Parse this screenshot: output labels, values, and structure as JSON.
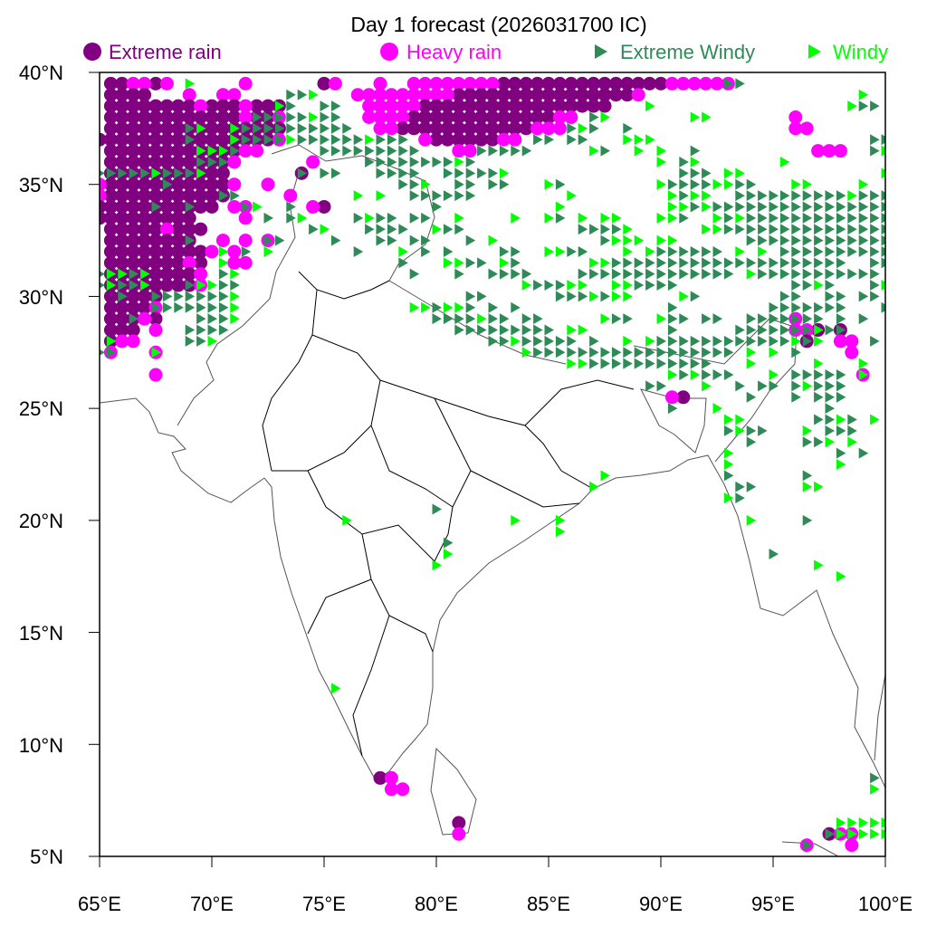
{
  "title": "Day 1 forecast (2026031700 IC)",
  "legend": [
    {
      "label": "Extreme rain",
      "symbol": "circle",
      "color": "#800080"
    },
    {
      "label": "Heavy rain",
      "symbol": "circle",
      "color": "#ff00ff"
    },
    {
      "label": "Extreme Windy",
      "symbol": "triangle",
      "color": "#2e8b57"
    },
    {
      "label": "Windy",
      "symbol": "triangle",
      "color": "#00ff00"
    }
  ],
  "axes": {
    "x_ticks": [
      "65°E",
      "70°E",
      "75°E",
      "80°E",
      "85°E",
      "90°E",
      "95°E",
      "100°E"
    ],
    "y_ticks": [
      "40°N",
      "35°N",
      "30°N",
      "25°N",
      "20°N",
      "15°N",
      "10°N",
      "5°N"
    ],
    "lon_range": [
      65,
      100
    ],
    "lat_range": [
      5,
      40
    ],
    "grid_step_deg": 0.5
  },
  "map_data": {
    "categories": {
      "extreme_rain": "#800080",
      "heavy_rain": "#ff00ff",
      "extreme_windy": "#2e8b57",
      "windy": "#00ff00"
    },
    "rows": [
      {
        "lat": 39.5,
        "extreme_rain": "65.5-66,67.5,75,83-90",
        "heavy_rain": "66.5-67,68,71.5,75.5,77.5,79-82.5,90.5-93",
        "extreme_windy": "93-93.5",
        "windy": "69"
      },
      {
        "lat": 39,
        "extreme_rain": "65.5-67,81-88.5",
        "heavy_rain": "69,70.5-71,76.5-80.5,89",
        "extreme_windy": "73.5-74",
        "windy": "74.5,99"
      },
      {
        "lat": 38.5,
        "extreme_rain": "65.5-69,70-71,72-73,79.5-87.5",
        "heavy_rain": "69.5,71.5,77-79",
        "extreme_windy": "73.5,75-75.5,99-99.5",
        "windy": "73,89.5,98.5"
      },
      {
        "lat": 38,
        "extreme_rain": "65.5-71,72-72.5,79-85",
        "heavy_rain": "71.5,73,77-78.5,85.5-86,96",
        "extreme_windy": "72-74,75-75.5,87",
        "windy": "74.5,87.5,91.5-92"
      },
      {
        "lat": 37.5,
        "extreme_rain": "65.5-73,78.5-84",
        "heavy_rain": "77.5-78,84.5-85.5,96-96.5",
        "extreme_windy": "69,71.5-76,86,87,88.5",
        "windy": "69.5,71,86.5"
      },
      {
        "lat": 37,
        "extreme_rain": "65-72.5,80-82.5",
        "heavy_rain": "73,79.5,83-83.5",
        "extreme_windy": "69,71.5-73,74-76.5,77.5-78.5,84.5-85,86-86.5,99.5-100",
        "windy": "71,73.5,77,88.5-89.5"
      },
      {
        "lat": 36.5,
        "extreme_rain": "65.5-71",
        "heavy_rain": "71.5-72,81-81.5,97-98",
        "extreme_windy": "71,75-79,82-84,87.5,91.5,99.5",
        "windy": "69.5-70.5,87,89,90,100"
      },
      {
        "lat": 36,
        "extreme_rain": "65.5-70.5",
        "heavy_rain": "71,74.5",
        "extreme_windy": "69.5-70.5,77-80.5,81.5,91",
        "windy": "81,90,91.5,95.5"
      },
      {
        "lat": 35.5,
        "extreme_rain": "65.5-70.5,74",
        "heavy_rain": "",
        "extreme_windy": "65-67,68-69,74,75-75.5,77.5-79,80.5-82.5,91-92",
        "windy": "67.5,69.5,83,93-93.5,100"
      },
      {
        "lat": 35,
        "extreme_rain": "65.5-70.5",
        "heavy_rain": "65,71,72.5",
        "extreme_windy": "68,78.5-79,81-81.5,82.5-83,85.5,90.5-92,93.5-94",
        "windy": "79.5,85,90,92.5-93,96-96.5,99"
      },
      {
        "lat": 34.5,
        "extreme_rain": "65.5-70.5",
        "heavy_rain": "65,73.5",
        "extreme_windy": "70.5-71,79-81.5,91,93.5-98,99-100",
        "windy": "76.5,77.5,86,90.5,91.5-92,98.5"
      },
      {
        "lat": 34,
        "extreme_rain": "65-70,75",
        "heavy_rain": "71,71.5,74.5",
        "extreme_windy": "67.5,69,71.5,73.5,80,91.5,92.5-100",
        "windy": "72,85.5,90.5-91,92"
      },
      {
        "lat": 33.5,
        "extreme_rain": "65-69",
        "heavy_rain": "71.5",
        "extreme_windy": "72.5,73.5,76.5,77.5-78,79-79.5,85.5,91,93,94-100",
        "windy": "74,77,81,83.5,85,86.5,87.5-88,90-90.5,92.5,93.5"
      },
      {
        "lat": 33,
        "extreme_rain": "65.5-67.5,68.5-69.5",
        "heavy_rain": "68",
        "extreme_windy": "74.5,77-78.5,80.5-81,86.5-88,93-100",
        "windy": "75,80,88.5,92-92.5"
      },
      {
        "lat": 32.5,
        "extreme_rain": "65.5-69",
        "heavy_rain": "70.5,71.5,72.5",
        "extreme_windy": "69,72.5-73,75.5,77.5-78,79-79.5,81.5,87.5,94-100",
        "windy": "82.5,88-89,90-90.5"
      },
      {
        "lat": 32,
        "extreme_rain": "65.5-69.5",
        "heavy_rain": "70,71",
        "extreme_windy": "71.5,76.5,79.5,80.5,83-83.5,86-86.5,90-92.5,95.5-100",
        "windy": "70.5,72.5,78.5,85-85.5,88.5,89.5,93.5,94.5"
      },
      {
        "lat": 31.5,
        "extreme_rain": "65.5-68.5,69.5",
        "heavy_rain": "69,71-71.5",
        "extreme_windy": "78.5,81.5-82,83.5,88-98,99.5-100",
        "windy": "70.5,80.5-81,83,87-87.5"
      },
      {
        "lat": 31,
        "extreme_rain": "65.5-69",
        "heavy_rain": "69.5",
        "extreme_windy": "65,66.5,70.5,79,81,82.5-84,86.5-93,94.5-99.5",
        "windy": "65.5-66,67,71,94"
      },
      {
        "lat": 30.5,
        "extreme_rain": "65.5-69",
        "heavy_rain": "69.5",
        "extreme_windy": "65,66-66.5,69,70.5-71,84.5-85.5,89-90.5,96-96.5,97.5,99.5",
        "windy": "65.5,67,69.5-70,84,86-86.5,88-88.5,97,100"
      },
      {
        "lat": 30,
        "extreme_rain": "65.5-67.5",
        "heavy_rain": "",
        "extreme_windy": "66,67.5-70.5,81.5-82,85.5-86.5,87.5,91.5,95.5-96,97.5-98,99-99.5",
        "windy": "71,87,88-88.5,91"
      },
      {
        "lat": 29.5,
        "extreme_rain": "65.5-67",
        "heavy_rain": "67.5",
        "extreme_windy": "67.5-70.5,80,81.5,82.5,83.5,90.5,95-98,100",
        "windy": "71,79-79.5,80.5-81"
      },
      {
        "lat": 29,
        "extreme_rain": "65.5-66.5,67.5",
        "heavy_rain": "67,96",
        "extreme_windy": "66.5,69.5-70.5,80-81.5,82.5-83,84-84.5,88-88.5,90.5-91,92-92.5,94-97,98,99",
        "windy": "71,82,87.5,90"
      },
      {
        "lat": 28.5,
        "extreme_rain": "65.5-66.5,97,98",
        "heavy_rain": "67.5,96-96.5",
        "extreme_windy": "69-70.5,81-85,90.5,93.5-96.5,97.5-98",
        "windy": "86-86.5,97"
      },
      {
        "lat": 28,
        "extreme_rain": "65.5,96.5",
        "heavy_rain": "66-66.5,98-98.5",
        "extreme_windy": "69-69.5,82.5-83,84-86,87,90-95.5,96.5,99.5",
        "windy": "65.5,70,83.5,88.5,89.5,96,97"
      },
      {
        "lat": 27.5,
        "extreme_rain": "",
        "heavy_rain": "65.5,67.5,98.5",
        "extreme_windy": "65,65.5,84.5-93,96",
        "windy": "67.5,84,94,95"
      },
      {
        "lat": 27,
        "extreme_rain": "",
        "heavy_rain": "",
        "extreme_windy": "87-92",
        "windy": "86-86.5,94,97,99"
      },
      {
        "lat": 26.5,
        "extreme_rain": "",
        "heavy_rain": "67.5,99",
        "extreme_windy": "91,92-93,96-98",
        "windy": "90.5,91.5,95,99"
      },
      {
        "lat": 26,
        "extreme_rain": "",
        "heavy_rain": "",
        "extreme_windy": "89.5-90,93.5,94.5-95,96,97-98",
        "windy": "92,96.5"
      },
      {
        "lat": 25.5,
        "extreme_rain": "91",
        "heavy_rain": "90.5",
        "extreme_windy": "94,96,97-98",
        "windy": ""
      },
      {
        "lat": 25,
        "extreme_rain": "",
        "heavy_rain": "",
        "extreme_windy": "90.5,97.5",
        "windy": "92.5"
      },
      {
        "lat": 24.5,
        "extreme_rain": "",
        "heavy_rain": "",
        "extreme_windy": "97-97.5,98.5",
        "windy": "93-93.5,98,99.5"
      },
      {
        "lat": 24,
        "extreme_rain": "",
        "heavy_rain": "",
        "extreme_windy": "93,94-94.5,97.5-98.5",
        "windy": "93.5,96.5"
      },
      {
        "lat": 23.5,
        "extreme_rain": "",
        "heavy_rain": "",
        "extreme_windy": "94,96.5-97",
        "windy": "97.5,98.5"
      },
      {
        "lat": 23,
        "extreme_rain": "",
        "heavy_rain": "",
        "extreme_windy": "98,99",
        "windy": "93"
      },
      {
        "lat": 22.5,
        "extreme_rain": "",
        "heavy_rain": "",
        "extreme_windy": "",
        "windy": "93,98"
      },
      {
        "lat": 22,
        "extreme_rain": "",
        "heavy_rain": "",
        "extreme_windy": "93,96.5",
        "windy": "87.5"
      },
      {
        "lat": 21.5,
        "extreme_rain": "",
        "heavy_rain": "",
        "extreme_windy": "93.5-94",
        "windy": "87,96.5-97"
      },
      {
        "lat": 21,
        "extreme_rain": "",
        "heavy_rain": "",
        "extreme_windy": "93.5",
        "windy": "93"
      },
      {
        "lat": 20.5,
        "extreme_rain": "",
        "heavy_rain": "",
        "extreme_windy": "80",
        "windy": ""
      },
      {
        "lat": 20,
        "extreme_rain": "",
        "heavy_rain": "",
        "extreme_windy": "96.5",
        "windy": "76,83.5,85.5,94"
      },
      {
        "lat": 19.5,
        "extreme_rain": "",
        "heavy_rain": "",
        "extreme_windy": "",
        "windy": "85.5"
      },
      {
        "lat": 19,
        "extreme_rain": "",
        "heavy_rain": "",
        "extreme_windy": "80.5",
        "windy": ""
      },
      {
        "lat": 18.5,
        "extreme_rain": "",
        "heavy_rain": "",
        "extreme_windy": "95",
        "windy": "80.5"
      },
      {
        "lat": 18,
        "extreme_rain": "",
        "heavy_rain": "",
        "extreme_windy": "",
        "windy": "80,97"
      },
      {
        "lat": 17.5,
        "extreme_rain": "",
        "heavy_rain": "",
        "extreme_windy": "",
        "windy": "98"
      },
      {
        "lat": 12.5,
        "extreme_rain": "",
        "heavy_rain": "",
        "extreme_windy": "",
        "windy": "75.5"
      },
      {
        "lat": 8.5,
        "extreme_rain": "77.5",
        "heavy_rain": "78",
        "extreme_windy": "99.5",
        "windy": ""
      },
      {
        "lat": 8,
        "extreme_rain": "",
        "heavy_rain": "78-78.5",
        "extreme_windy": "",
        "windy": "99.5"
      },
      {
        "lat": 6.5,
        "extreme_rain": "81",
        "heavy_rain": "",
        "extreme_windy": "",
        "windy": "98-100"
      },
      {
        "lat": 6,
        "extreme_rain": "97.5",
        "heavy_rain": "81,98-98.5",
        "extreme_windy": "97.5",
        "windy": "98,98.5,99-100"
      },
      {
        "lat": 5.5,
        "extreme_rain": "",
        "heavy_rain": "96.5,98.5",
        "extreme_windy": "96.5",
        "windy": ""
      }
    ]
  }
}
